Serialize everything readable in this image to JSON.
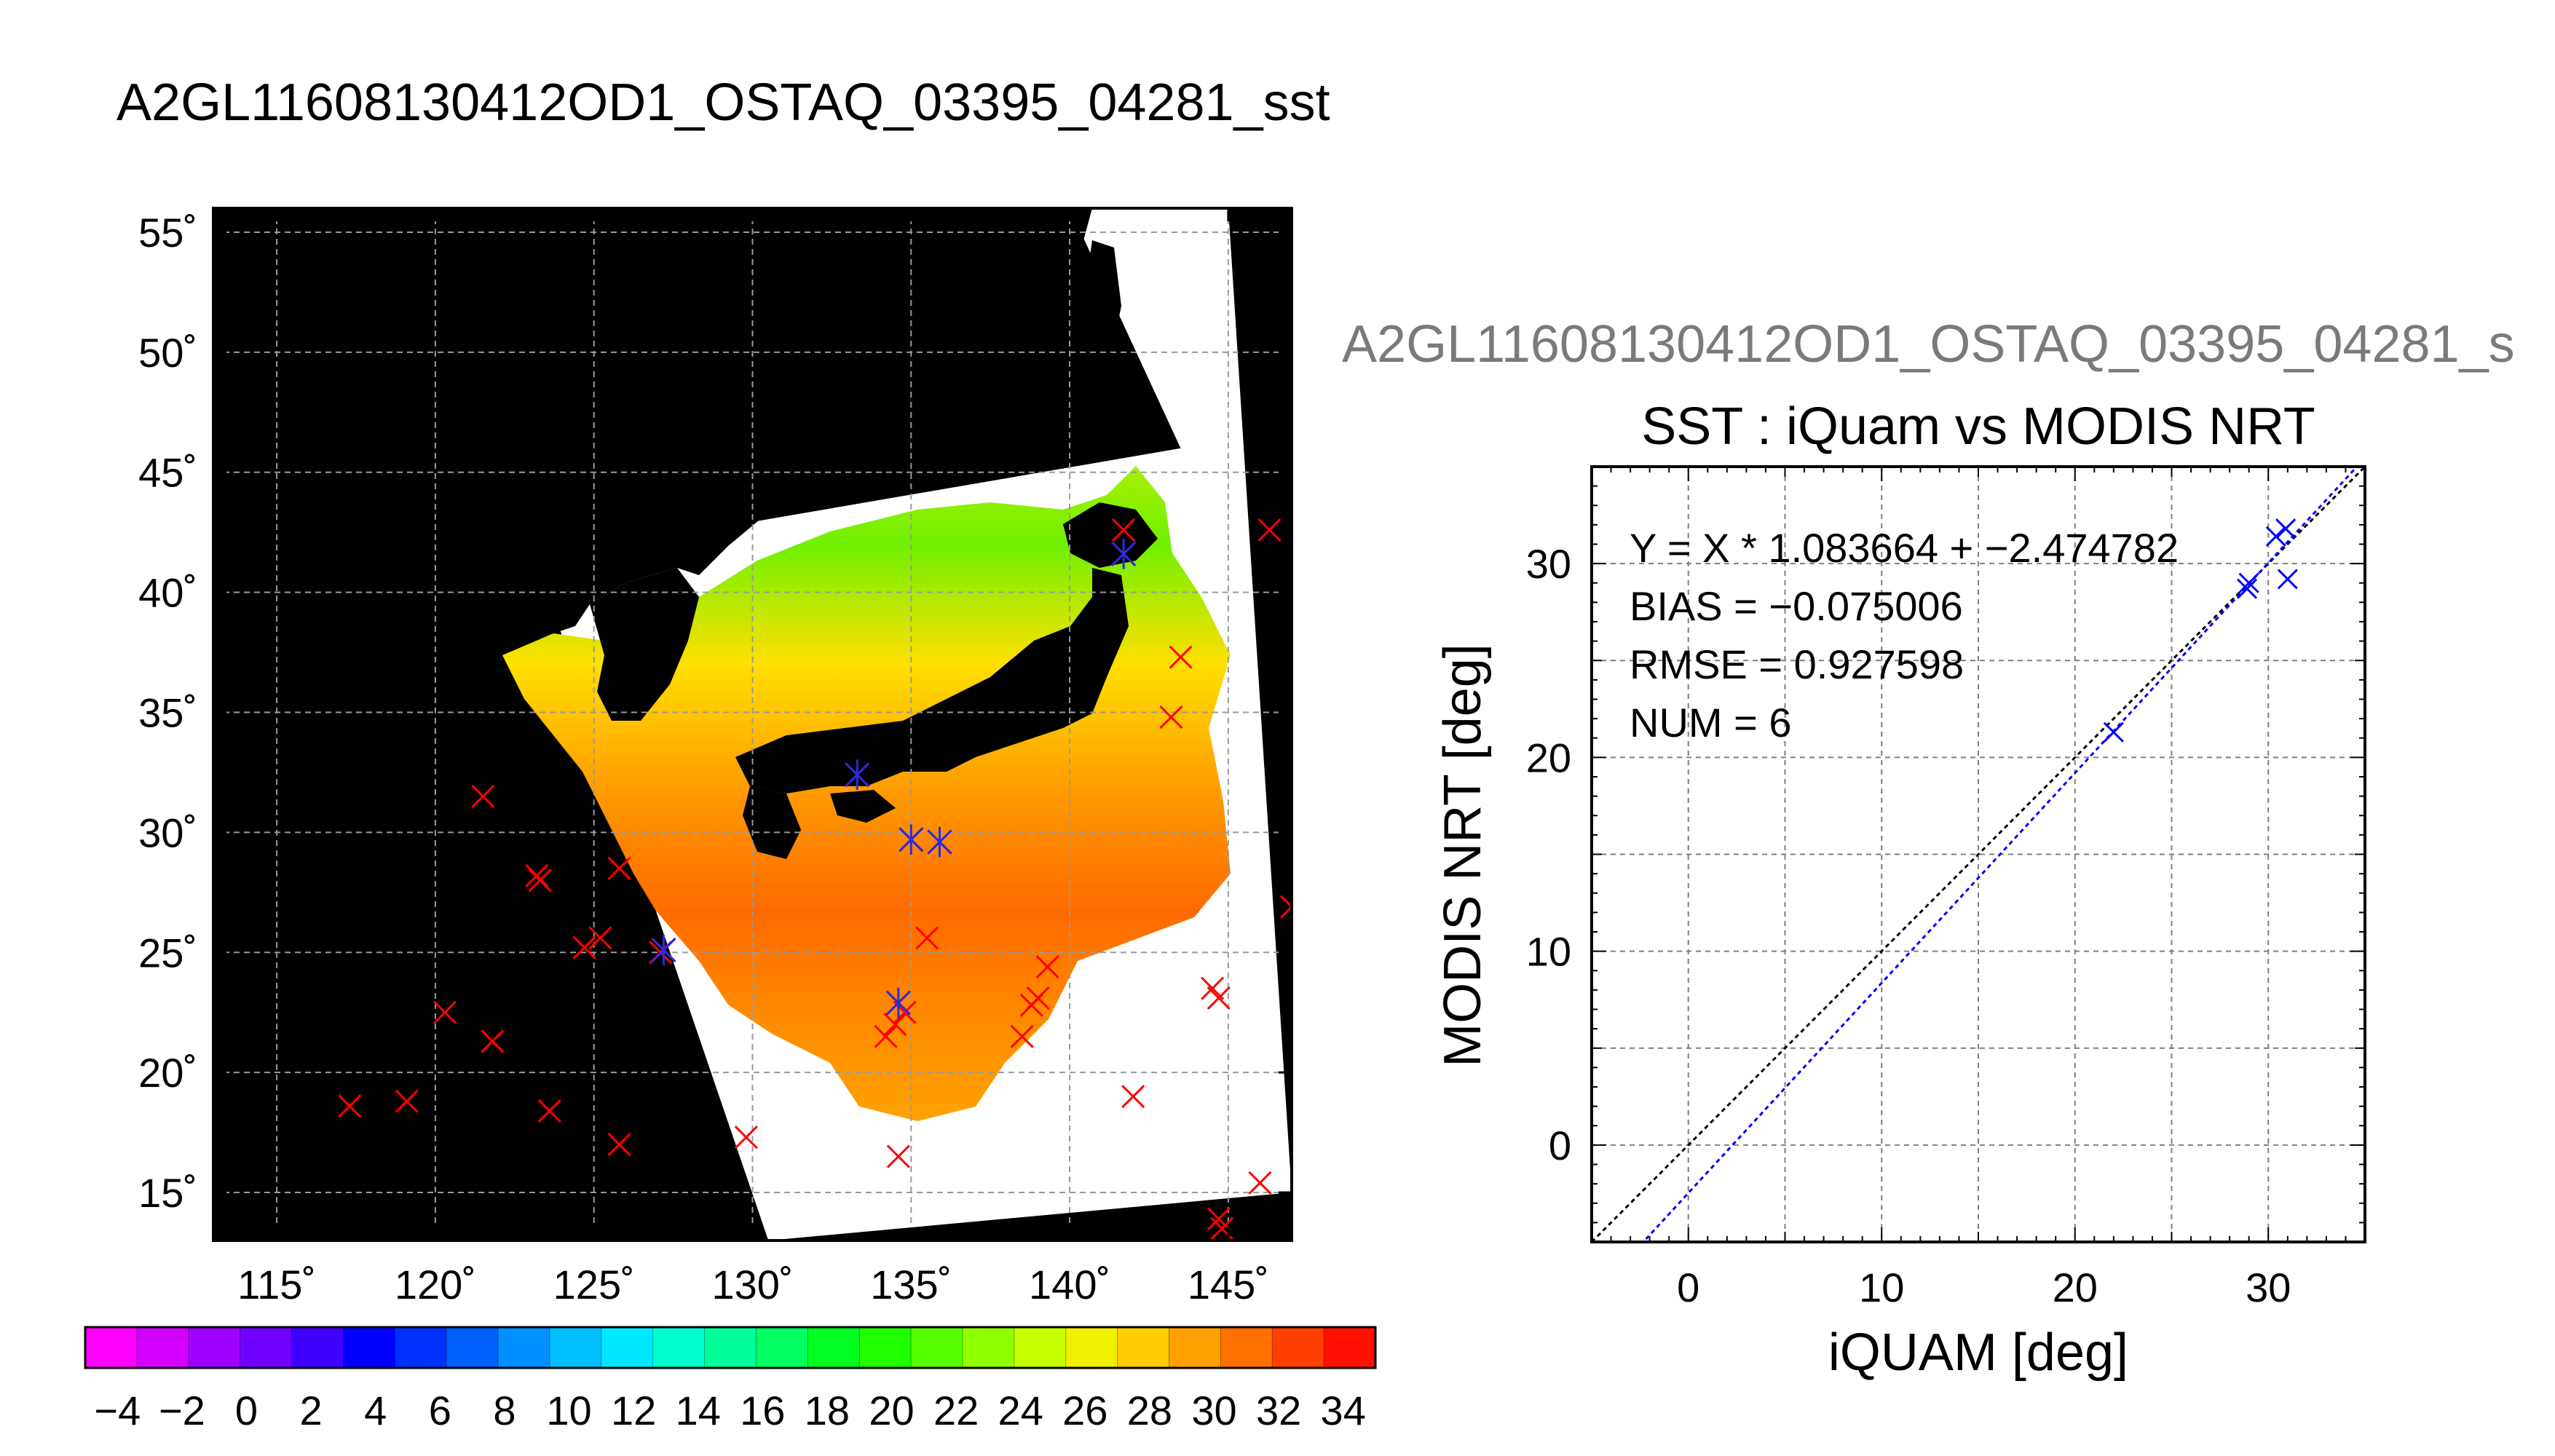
{
  "figure": {
    "main_title": "A2GL11608130412OD1_OSTAQ_03395_04281_sst",
    "scatter_header": "A2GL11608130412OD1_OSTAQ_03395_04281_s"
  },
  "chart_data": [
    {
      "type": "map",
      "title": "",
      "lon_range": [
        113,
        147
      ],
      "lat_range": [
        13,
        56
      ],
      "lon_ticks": [
        115,
        120,
        125,
        130,
        135,
        140,
        145
      ],
      "lat_ticks": [
        15,
        20,
        25,
        30,
        35,
        40,
        45,
        50,
        55
      ],
      "lon_tick_labels": [
        "115˚",
        "120˚",
        "125˚",
        "130˚",
        "135˚",
        "140˚",
        "145˚"
      ],
      "lat_tick_labels": [
        "15˚",
        "20˚",
        "25˚",
        "30˚",
        "35˚",
        "40˚",
        "45˚",
        "50˚",
        "55˚"
      ],
      "grid": true,
      "colors": {
        "land": "#000000",
        "no_data": "#ffffff",
        "grid": "#9a9a9a"
      },
      "swath_corners": [
        [
          120.6,
          40.8
        ],
        [
          123.5,
          40.1
        ],
        [
          130.5,
          13.0
        ],
        [
          147.0,
          15.0
        ],
        [
          145.0,
          56.0
        ],
        [
          140.0,
          56.0
        ],
        [
          143.5,
          46.0
        ]
      ],
      "red_x_points": [
        [
          141.7,
          42.6
        ],
        [
          146.3,
          42.6
        ],
        [
          143.5,
          37.3
        ],
        [
          143.2,
          34.8
        ],
        [
          121.5,
          31.5
        ],
        [
          123.2,
          28.2
        ],
        [
          123.3,
          28.0
        ],
        [
          125.8,
          28.5
        ],
        [
          147.0,
          26.9
        ],
        [
          127.1,
          25.0
        ],
        [
          125.2,
          25.6
        ],
        [
          124.7,
          25.2
        ],
        [
          135.5,
          25.6
        ],
        [
          139.3,
          24.4
        ],
        [
          134.8,
          22.5
        ],
        [
          134.5,
          22.0
        ],
        [
          134.2,
          21.5
        ],
        [
          139.0,
          23.1
        ],
        [
          138.8,
          22.8
        ],
        [
          144.5,
          23.5
        ],
        [
          144.7,
          23.1
        ],
        [
          138.5,
          21.5
        ],
        [
          120.3,
          22.5
        ],
        [
          121.8,
          21.3
        ],
        [
          142.0,
          19.0
        ],
        [
          117.3,
          18.6
        ],
        [
          119.1,
          18.8
        ],
        [
          123.6,
          18.4
        ],
        [
          125.8,
          17.0
        ],
        [
          129.8,
          17.3
        ],
        [
          134.6,
          16.5
        ],
        [
          146.0,
          15.4
        ],
        [
          144.7,
          13.9
        ],
        [
          144.8,
          13.5
        ]
      ],
      "blue_x_points": [
        [
          141.7,
          41.6
        ],
        [
          133.3,
          32.4
        ],
        [
          135.0,
          29.7
        ],
        [
          135.9,
          29.6
        ],
        [
          127.2,
          25.1
        ],
        [
          134.6,
          22.9
        ]
      ]
    },
    {
      "type": "colorbar",
      "ticks": [
        -4,
        -2,
        0,
        2,
        4,
        6,
        8,
        10,
        12,
        14,
        16,
        18,
        20,
        22,
        24,
        26,
        28,
        30,
        32,
        34
      ],
      "tick_labels": [
        "−4",
        "−2",
        "0",
        "2",
        "4",
        "6",
        "8",
        "10",
        "12",
        "14",
        "16",
        "18",
        "20",
        "22",
        "24",
        "26",
        "28",
        "30",
        "32",
        "34"
      ],
      "range": [
        -5,
        35
      ],
      "colors": [
        "#ff00ff",
        "#d400ff",
        "#a000ff",
        "#7000ff",
        "#4000ff",
        "#0000ff",
        "#0030ff",
        "#0060ff",
        "#0090ff",
        "#00bfff",
        "#00e8ff",
        "#00ffd0",
        "#00ff9a",
        "#00ff60",
        "#00ff20",
        "#20ff00",
        "#55ff00",
        "#90ff00",
        "#c8ff00",
        "#f0f000",
        "#ffcc00",
        "#ffa000",
        "#ff7000",
        "#ff4000",
        "#ff1000"
      ]
    },
    {
      "type": "scatter",
      "title": "SST : iQuam vs MODIS NRT",
      "xlabel": "iQUAM [deg]",
      "ylabel": "MODIS NRT [deg]",
      "xlim": [
        -5,
        35
      ],
      "ylim": [
        -5,
        35
      ],
      "x_ticks": [
        0,
        10,
        20,
        30
      ],
      "y_ticks": [
        0,
        10,
        20,
        30
      ],
      "x_tick_labels": [
        "0",
        "10",
        "20",
        "30"
      ],
      "y_tick_labels": [
        "0",
        "10",
        "20",
        "30"
      ],
      "grid": true,
      "stats": [
        "Y = X * 1.083664 + −2.474782",
        "BIAS = −0.075006",
        "RMSE = 0.927598",
        "NUM = 6"
      ],
      "points": [
        {
          "x": 22.0,
          "y": 21.3
        },
        {
          "x": 28.9,
          "y": 28.7
        },
        {
          "x": 29.0,
          "y": 29.0
        },
        {
          "x": 30.4,
          "y": 31.4
        },
        {
          "x": 30.9,
          "y": 31.8
        },
        {
          "x": 31.0,
          "y": 29.2
        }
      ],
      "lines": [
        {
          "kind": "identity",
          "slope": 1.0,
          "intercept": 0.0,
          "color": "#000000"
        },
        {
          "kind": "fit",
          "slope": 1.083664,
          "intercept": -2.474782,
          "color": "#0000ff"
        }
      ],
      "marker_color": "#0000ff"
    }
  ]
}
